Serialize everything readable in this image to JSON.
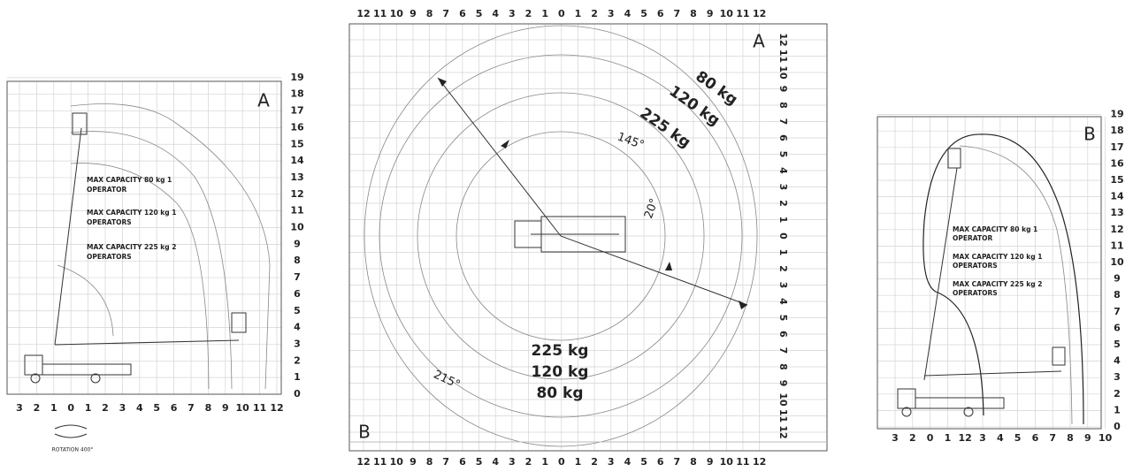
{
  "side_a": {
    "label": "A",
    "y_axis": [
      0,
      1,
      2,
      3,
      4,
      5,
      6,
      7,
      8,
      9,
      10,
      11,
      12,
      13,
      14,
      15,
      16,
      17,
      18,
      19
    ],
    "x_axis": [
      3,
      2,
      1,
      0,
      1,
      2,
      3,
      4,
      5,
      6,
      7,
      8,
      9,
      10,
      11,
      12
    ],
    "capacities": [
      {
        "line1": "MAX CAPACITY 80 kg 1",
        "line2": "OPERATOR"
      },
      {
        "line1": "MAX CAPACITY 120 kg 1",
        "line2": "OPERATORS"
      },
      {
        "line1": "MAX CAPACITY 225 kg 2",
        "line2": "OPERATORS"
      }
    ],
    "note": "ROTATION 400°"
  },
  "top_view": {
    "labels": [
      "A",
      "B"
    ],
    "top_axis": [
      12,
      11,
      10,
      9,
      8,
      7,
      6,
      5,
      4,
      3,
      2,
      1,
      0,
      1,
      2,
      3,
      4,
      5,
      6,
      7,
      8,
      9,
      10,
      11,
      12
    ],
    "bottom_axis": [
      12,
      11,
      10,
      9,
      8,
      7,
      6,
      5,
      4,
      3,
      2,
      1,
      0,
      1,
      2,
      3,
      4,
      5,
      6,
      7,
      8,
      9,
      10,
      11,
      12
    ],
    "right_axis": [
      12,
      11,
      10,
      9,
      8,
      7,
      6,
      5,
      4,
      3,
      2,
      1,
      0,
      1,
      2,
      3,
      4,
      5,
      6,
      7,
      8,
      9,
      10,
      11,
      12
    ],
    "arc_loads": [
      "80 kg",
      "120 kg",
      "225 kg"
    ],
    "angles": [
      "145°",
      "20°",
      "215°"
    ],
    "center_loads": [
      "225 kg",
      "120 kg",
      "80 kg"
    ]
  },
  "side_b": {
    "label": "B",
    "y_axis": [
      0,
      1,
      2,
      3,
      4,
      5,
      6,
      7,
      8,
      9,
      10,
      11,
      12,
      13,
      14,
      15,
      16,
      17,
      18,
      19
    ],
    "x_axis": [
      3,
      2,
      0,
      1,
      12,
      3,
      4,
      5,
      6,
      7,
      8,
      9,
      10
    ],
    "capacities": [
      {
        "line1": "MAX CAPACITY 80 kg 1",
        "line2": "OPERATOR"
      },
      {
        "line1": "MAX CAPACITY 120 kg 1",
        "line2": "OPERATORS"
      },
      {
        "line1": "MAX CAPACITY 225 kg 2",
        "line2": "OPERATORS"
      }
    ]
  }
}
